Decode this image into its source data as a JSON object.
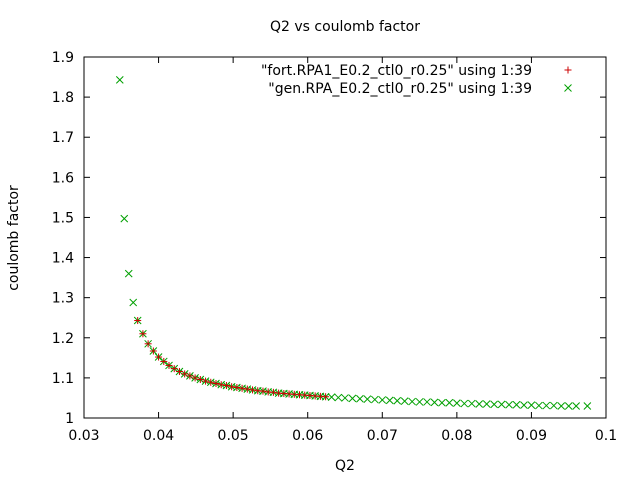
{
  "chart_data": {
    "type": "scatter",
    "title": "Q2 vs coulomb factor",
    "xlabel": "Q2",
    "ylabel": "coulomb factor",
    "xlim": [
      0.03,
      0.1
    ],
    "ylim": [
      1,
      1.9
    ],
    "xticks": [
      "0.03",
      "0.04",
      "0.05",
      "0.06",
      "0.07",
      "0.08",
      "0.09",
      "0.1"
    ],
    "yticks": [
      "1",
      "1.1",
      "1.2",
      "1.3",
      "1.4",
      "1.5",
      "1.6",
      "1.7",
      "1.8",
      "1.9"
    ],
    "grid": false,
    "legend_position": "top-right",
    "series": [
      {
        "name": "\"fort.RPA1_E0.2_ctl0_r0.25\" using 1:39",
        "marker": "plus",
        "color": "#cc0000",
        "points": [
          [
            0.0372,
            1.243
          ],
          [
            0.0379,
            1.21
          ],
          [
            0.0386,
            1.185
          ],
          [
            0.0393,
            1.167
          ],
          [
            0.04,
            1.152
          ],
          [
            0.0407,
            1.141
          ],
          [
            0.0414,
            1.131
          ],
          [
            0.0421,
            1.123
          ],
          [
            0.0428,
            1.116
          ],
          [
            0.0435,
            1.11
          ],
          [
            0.0442,
            1.105
          ],
          [
            0.0449,
            1.1
          ],
          [
            0.0456,
            1.096
          ],
          [
            0.0463,
            1.092
          ],
          [
            0.047,
            1.089
          ],
          [
            0.0477,
            1.086
          ],
          [
            0.0484,
            1.083
          ],
          [
            0.0491,
            1.081
          ],
          [
            0.0498,
            1.078
          ],
          [
            0.0505,
            1.076
          ],
          [
            0.0512,
            1.074
          ],
          [
            0.0519,
            1.072
          ],
          [
            0.0526,
            1.07
          ],
          [
            0.0533,
            1.068
          ],
          [
            0.054,
            1.067
          ],
          [
            0.0547,
            1.065
          ],
          [
            0.0554,
            1.064
          ],
          [
            0.0561,
            1.062
          ],
          [
            0.0568,
            1.061
          ],
          [
            0.0575,
            1.06
          ],
          [
            0.0582,
            1.059
          ],
          [
            0.0589,
            1.058
          ],
          [
            0.0596,
            1.057
          ],
          [
            0.0603,
            1.056
          ],
          [
            0.061,
            1.055
          ],
          [
            0.0617,
            1.054
          ],
          [
            0.0624,
            1.053
          ]
        ]
      },
      {
        "name": "\"gen.RPA_E0.2_ctl0_r0.25\" using 1:39",
        "marker": "cross",
        "color": "#00a000",
        "points": [
          [
            0.0348,
            1.843
          ],
          [
            0.0354,
            1.497
          ],
          [
            0.036,
            1.36
          ],
          [
            0.0366,
            1.288
          ],
          [
            0.0372,
            1.243
          ],
          [
            0.0379,
            1.21
          ],
          [
            0.0386,
            1.185
          ],
          [
            0.0393,
            1.167
          ],
          [
            0.04,
            1.152
          ],
          [
            0.0407,
            1.141
          ],
          [
            0.0414,
            1.131
          ],
          [
            0.0421,
            1.123
          ],
          [
            0.0428,
            1.116
          ],
          [
            0.0435,
            1.11
          ],
          [
            0.0442,
            1.105
          ],
          [
            0.0449,
            1.1
          ],
          [
            0.0456,
            1.096
          ],
          [
            0.0463,
            1.092
          ],
          [
            0.047,
            1.089
          ],
          [
            0.0477,
            1.086
          ],
          [
            0.0484,
            1.083
          ],
          [
            0.0491,
            1.081
          ],
          [
            0.0498,
            1.078
          ],
          [
            0.0505,
            1.076
          ],
          [
            0.0512,
            1.074
          ],
          [
            0.0519,
            1.072
          ],
          [
            0.0526,
            1.07
          ],
          [
            0.0533,
            1.068
          ],
          [
            0.054,
            1.067
          ],
          [
            0.0547,
            1.065
          ],
          [
            0.0554,
            1.064
          ],
          [
            0.0561,
            1.062
          ],
          [
            0.0568,
            1.061
          ],
          [
            0.0575,
            1.06
          ],
          [
            0.0582,
            1.059
          ],
          [
            0.0589,
            1.058
          ],
          [
            0.0596,
            1.057
          ],
          [
            0.0603,
            1.056
          ],
          [
            0.061,
            1.055
          ],
          [
            0.0617,
            1.054
          ],
          [
            0.0624,
            1.053
          ],
          [
            0.0632,
            1.052
          ],
          [
            0.0641,
            1.051
          ],
          [
            0.065,
            1.05
          ],
          [
            0.066,
            1.049
          ],
          [
            0.067,
            1.048
          ],
          [
            0.068,
            1.047
          ],
          [
            0.069,
            1.046
          ],
          [
            0.07,
            1.045
          ],
          [
            0.071,
            1.044
          ],
          [
            0.072,
            1.043
          ],
          [
            0.073,
            1.042
          ],
          [
            0.074,
            1.041
          ],
          [
            0.075,
            1.04
          ],
          [
            0.076,
            1.04
          ],
          [
            0.077,
            1.039
          ],
          [
            0.078,
            1.038
          ],
          [
            0.079,
            1.038
          ],
          [
            0.08,
            1.037
          ],
          [
            0.081,
            1.036
          ],
          [
            0.082,
            1.036
          ],
          [
            0.083,
            1.035
          ],
          [
            0.084,
            1.035
          ],
          [
            0.085,
            1.034
          ],
          [
            0.086,
            1.034
          ],
          [
            0.087,
            1.033
          ],
          [
            0.088,
            1.033
          ],
          [
            0.089,
            1.032
          ],
          [
            0.09,
            1.032
          ],
          [
            0.091,
            1.031
          ],
          [
            0.092,
            1.031
          ],
          [
            0.093,
            1.031
          ],
          [
            0.094,
            1.03
          ],
          [
            0.095,
            1.03
          ],
          [
            0.096,
            1.03
          ],
          [
            0.0975,
            1.03
          ]
        ]
      }
    ]
  }
}
